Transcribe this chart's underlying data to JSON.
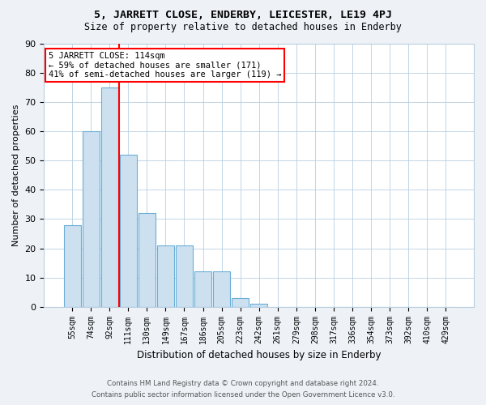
{
  "title": "5, JARRETT CLOSE, ENDERBY, LEICESTER, LE19 4PJ",
  "subtitle": "Size of property relative to detached houses in Enderby",
  "xlabel": "Distribution of detached houses by size in Enderby",
  "ylabel": "Number of detached properties",
  "categories": [
    "55sqm",
    "74sqm",
    "92sqm",
    "111sqm",
    "130sqm",
    "149sqm",
    "167sqm",
    "186sqm",
    "205sqm",
    "223sqm",
    "242sqm",
    "261sqm",
    "279sqm",
    "298sqm",
    "317sqm",
    "336sqm",
    "354sqm",
    "373sqm",
    "392sqm",
    "410sqm",
    "429sqm"
  ],
  "values": [
    28,
    60,
    75,
    52,
    32,
    21,
    21,
    12,
    12,
    3,
    1,
    0,
    0,
    0,
    0,
    0,
    0,
    0,
    0,
    0,
    0
  ],
  "bar_color": "#cce0f0",
  "bar_edge_color": "#6aaed6",
  "vline_color": "red",
  "vline_position": 2.5,
  "annotation_text": "5 JARRETT CLOSE: 114sqm\n← 59% of detached houses are smaller (171)\n41% of semi-detached houses are larger (119) →",
  "annotation_box_color": "white",
  "annotation_box_edge": "red",
  "footer1": "Contains HM Land Registry data © Crown copyright and database right 2024.",
  "footer2": "Contains public sector information licensed under the Open Government Licence v3.0.",
  "background_color": "#eef2f7",
  "plot_background": "white",
  "ylim": [
    0,
    90
  ],
  "yticks": [
    0,
    10,
    20,
    30,
    40,
    50,
    60,
    70,
    80,
    90
  ],
  "grid_color": "#b8cee0",
  "title_fontsize": 9.5,
  "subtitle_fontsize": 8.5
}
